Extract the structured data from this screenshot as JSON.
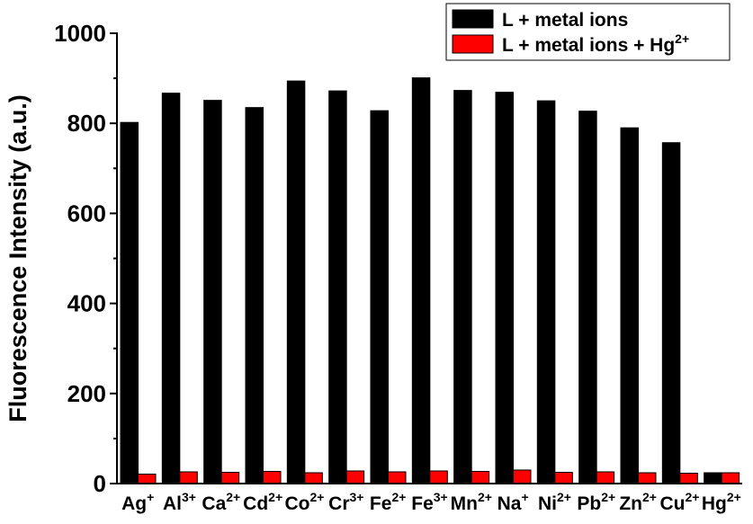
{
  "chart_data": {
    "type": "bar",
    "title": "",
    "xlabel": "",
    "ylabel": "Fluorescence Intensity (a.u.)",
    "ylim": [
      0,
      1000
    ],
    "yticks": [
      "0",
      "200",
      "400",
      "600",
      "800",
      "1000"
    ],
    "categories": [
      {
        "base": "Ag",
        "sup": "+"
      },
      {
        "base": "Al",
        "sup": "3+"
      },
      {
        "base": "Ca",
        "sup": "2+"
      },
      {
        "base": "Cd",
        "sup": "2+"
      },
      {
        "base": "Co",
        "sup": "2+"
      },
      {
        "base": "Cr",
        "sup": "3+"
      },
      {
        "base": "Fe",
        "sup": "2+"
      },
      {
        "base": "Fe",
        "sup": "3+"
      },
      {
        "base": "Mn",
        "sup": "2+"
      },
      {
        "base": "Na",
        "sup": "+"
      },
      {
        "base": "Ni",
        "sup": "2+"
      },
      {
        "base": "Pb",
        "sup": "2+"
      },
      {
        "base": "Zn",
        "sup": "2+"
      },
      {
        "base": "Cu",
        "sup": "2+"
      },
      {
        "base": "Hg",
        "sup": "2+"
      }
    ],
    "series": [
      {
        "name": "L + metal ions",
        "name_sup": "",
        "color": "#000000",
        "values": [
          802,
          867,
          851,
          835,
          894,
          872,
          828,
          901,
          873,
          869,
          850,
          827,
          790,
          757,
          24
        ]
      },
      {
        "name": "L + metal ions + Hg",
        "name_sup": "2+",
        "color": "#ff0000",
        "values": [
          21,
          26,
          25,
          27,
          24,
          28,
          26,
          28,
          27,
          30,
          25,
          26,
          24,
          23,
          24
        ]
      }
    ],
    "legend_position": "top-right",
    "grid": false
  }
}
